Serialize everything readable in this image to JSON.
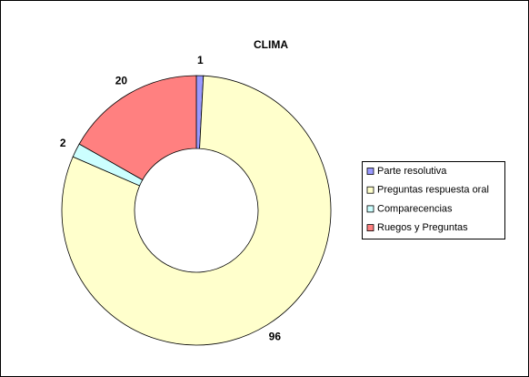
{
  "chart_data": {
    "type": "donut",
    "title": "CLIMA",
    "categories": [
      "Parte resolutiva",
      "Preguntas respuesta oral",
      "Comparecencias",
      "Ruegos y Preguntas"
    ],
    "values": [
      1,
      96,
      2,
      20
    ],
    "colors": [
      "#9999ff",
      "#ffffcc",
      "#ccffff",
      "#ff8080"
    ],
    "legend": "right"
  }
}
